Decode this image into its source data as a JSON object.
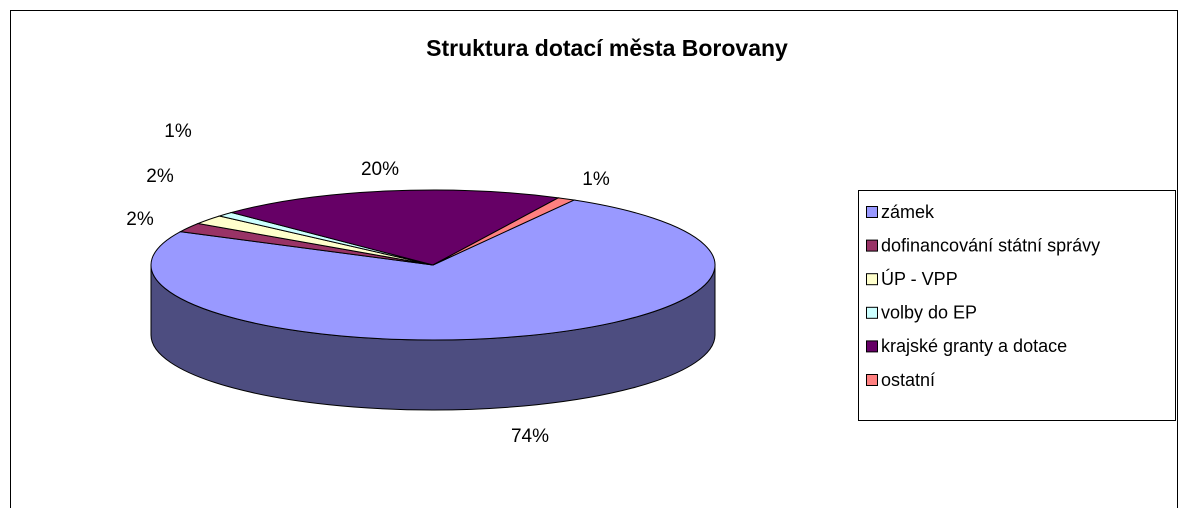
{
  "chart_data": {
    "type": "pie3d",
    "title": "Struktura dotací města Borovany",
    "categories": [
      "zámek",
      "dofinancování státní správy",
      "ÚP - VPP",
      "volby do EP",
      "krajské granty a dotace",
      "ostatní"
    ],
    "values": [
      74,
      2,
      2,
      1,
      20,
      1
    ],
    "value_labels": [
      "74%",
      "2%",
      "2%",
      "1%",
      "20%",
      "1%"
    ],
    "colors": [
      "#9999ff",
      "#993366",
      "#ffffcc",
      "#ccffff",
      "#660066",
      "#ff8080"
    ],
    "legend": "right"
  }
}
